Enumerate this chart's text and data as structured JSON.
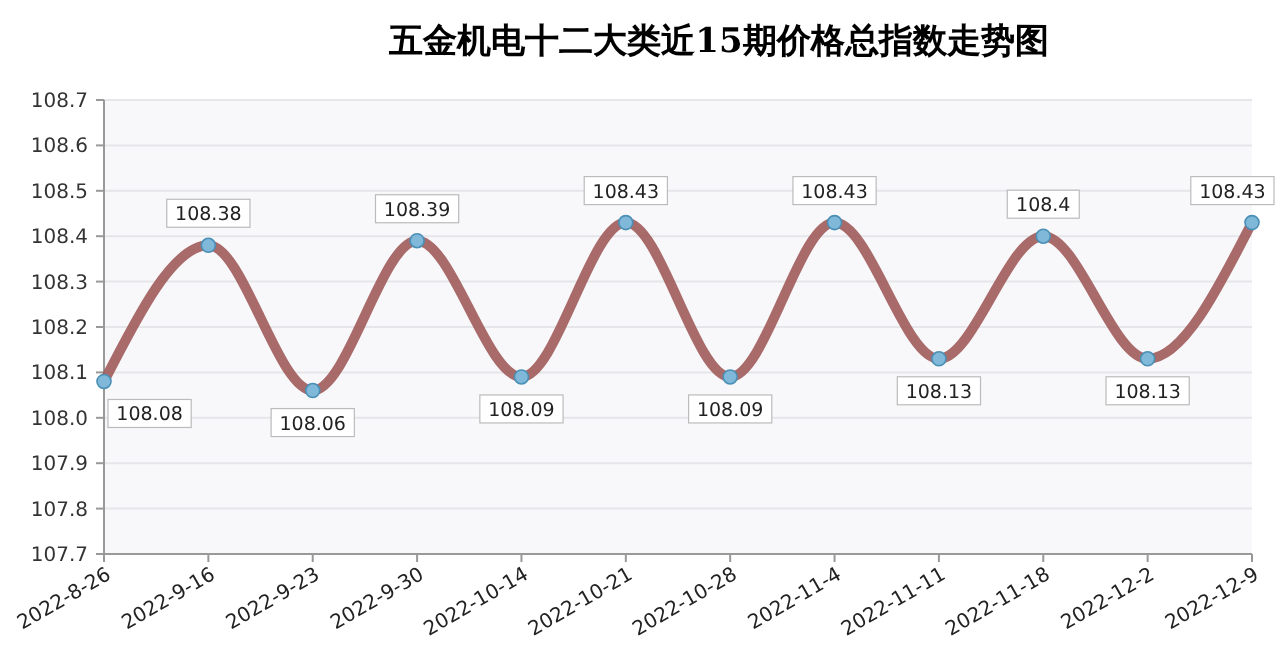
{
  "chart_data": {
    "type": "line",
    "title": "五金机电十二大类近15期价格总指数走势图",
    "categories": [
      "2022-8-26",
      "2022-9-16",
      "2022-9-23",
      "2022-9-30",
      "2022-10-14",
      "2022-10-21",
      "2022-10-28",
      "2022-11-4",
      "2022-11-11",
      "2022-11-18",
      "2022-12-2",
      "2022-12-9"
    ],
    "series": [
      {
        "color": "#a05a5a",
        "values": [
          108.08,
          108.38,
          108.06,
          108.39,
          108.09,
          108.43,
          108.09,
          108.43,
          108.13,
          108.4,
          108.13,
          108.43
        ]
      }
    ],
    "ylim": [
      107.7,
      108.7
    ],
    "yticks": [
      107.7,
      107.8,
      107.9,
      {
        "value": 108,
        "label": "108.0"
      },
      108.1,
      108.2,
      108.3,
      108.4,
      108.5,
      108.6,
      108.7
    ],
    "grid": "y",
    "marker": "circle",
    "line_style": "solid",
    "data_labels": true
  }
}
